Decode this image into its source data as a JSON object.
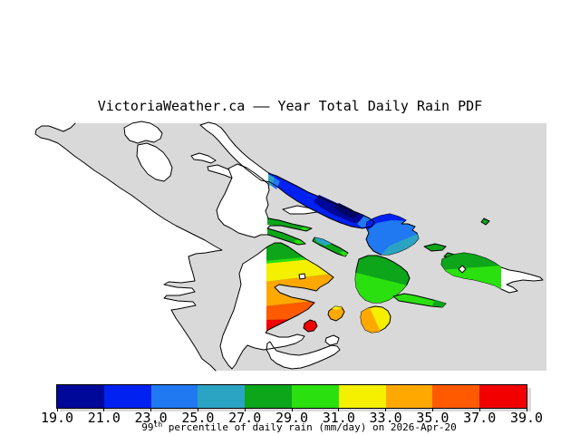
{
  "title": "VictoriaWeather.ca —— Year Total Daily Rain PDF",
  "colorbar": {
    "ticks": [
      "19.0",
      "21.0",
      "23.0",
      "25.0",
      "27.0",
      "29.0",
      "31.0",
      "33.0",
      "35.0",
      "37.0",
      "39.0"
    ],
    "segments": [
      "#000899",
      "#0021f0",
      "#2079f0",
      "#2ba4c4",
      "#0da51a",
      "#2ae00e",
      "#f5ef00",
      "#ffa800",
      "#ff5a00",
      "#f20000"
    ],
    "caption": {
      "prefix": "99",
      "sup": "th",
      "suffix": " percentile of daily rain (mm/day) on 2026-Apr-20"
    }
  },
  "map_legend": {
    "units": "mm/day",
    "value_min": "19.0",
    "value_max": "39.0",
    "date": "2026-Apr-20"
  },
  "palette": {
    "sea": "#d9d9d9",
    "land": "#ffffff",
    "coast": "#000000",
    "navy": "#000899",
    "navy2": "#000566",
    "blue": "#0021f0",
    "dodger": "#2079f0",
    "teal": "#2ba4c4",
    "green": "#0da51a",
    "bgreen": "#2ae00e",
    "yellow": "#f5ef00",
    "orange": "#ffa800",
    "dorange": "#ff5a00",
    "red": "#f20000"
  }
}
